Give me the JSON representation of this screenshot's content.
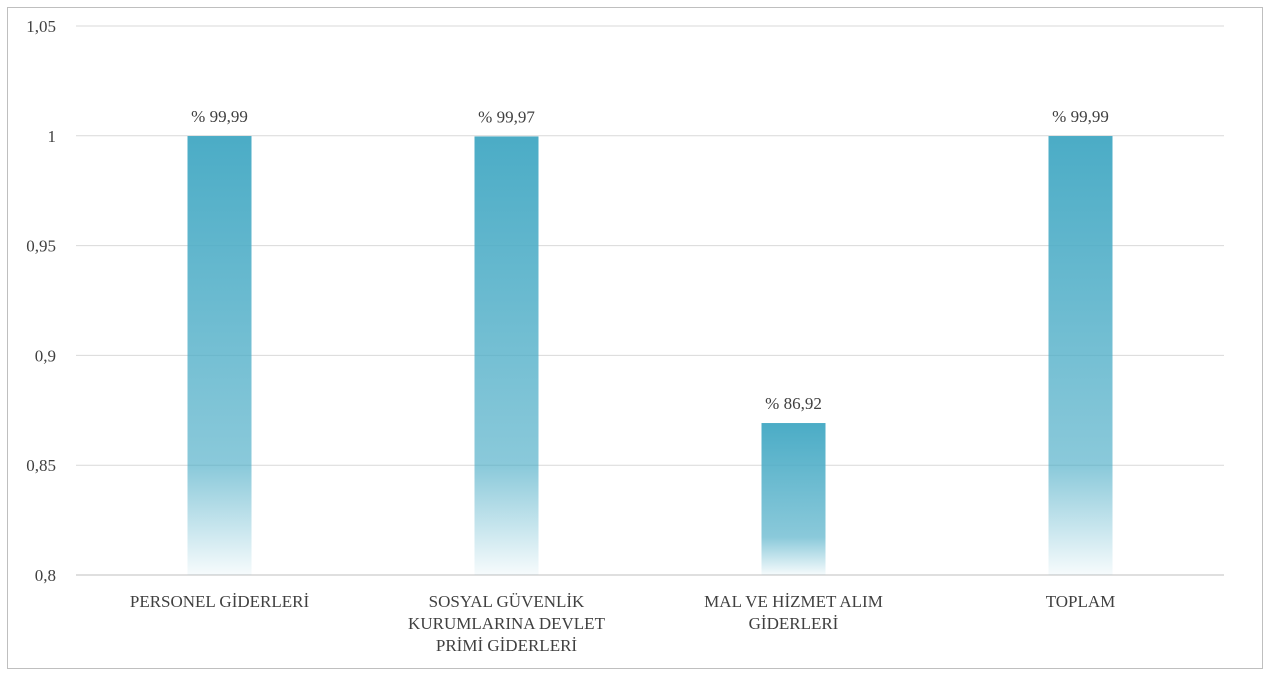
{
  "chart_data": {
    "type": "bar",
    "categories": [
      [
        "PERSONEL GİDERLERİ"
      ],
      [
        "SOSYAL GÜVENLİK",
        "KURUMLARINA DEVLET",
        "PRİMİ GİDERLERİ"
      ],
      [
        "MAL VE HİZMET ALIM",
        "GİDERLERİ"
      ],
      [
        "TOPLAM"
      ]
    ],
    "values": [
      0.9999,
      0.9997,
      0.8692,
      0.9999
    ],
    "data_labels": [
      "% 99,99",
      "% 99,97",
      "% 86,92",
      "% 99,99"
    ],
    "ylim": [
      0.8,
      1.05
    ],
    "yticks": [
      0.8,
      0.85,
      0.9,
      0.95,
      1,
      1.05
    ],
    "ytick_labels": [
      "0,8",
      "0,85",
      "0,9",
      "0,95",
      "1",
      "1,05"
    ],
    "grid": true,
    "colors": {
      "bar": "#4bacc6",
      "grid": "#d9d9d9",
      "text": "#404040",
      "border": "#bfbfbf"
    }
  }
}
